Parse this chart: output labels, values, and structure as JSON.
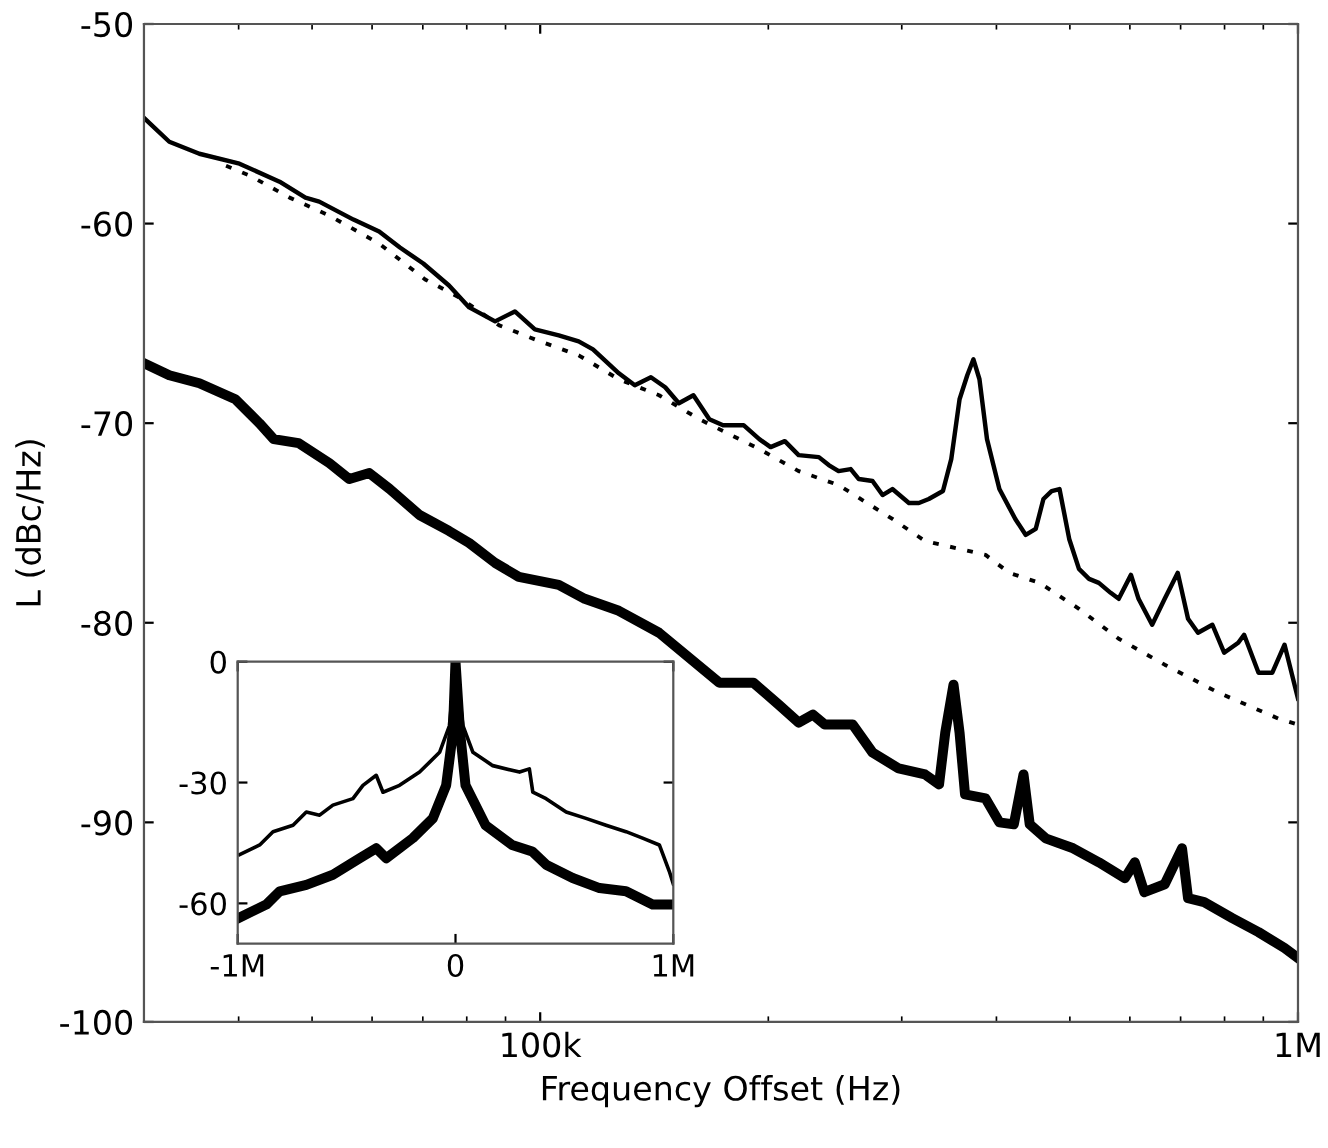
{
  "chart_data": [
    {
      "type": "line",
      "xlabel": "Frequency Offset (Hz)",
      "ylabel": "L (dBc/Hz)",
      "log": "x",
      "xlim": [
        30000,
        1000000
      ],
      "xticks": [
        {
          "value": 100000,
          "label": "100k"
        },
        {
          "value": 1000000,
          "label": "1M"
        }
      ],
      "ylim": [
        -100,
        -50
      ],
      "yticks": [
        -100,
        -90,
        -80,
        -70,
        -60,
        -50
      ],
      "grid": false,
      "legend": false,
      "marker": "none",
      "series": [
        {
          "color": "#000000",
          "line_style": "solid",
          "x": [
            30000,
            32400,
            35500,
            40100,
            45300,
            49000,
            51100,
            56700,
            61300,
            65300,
            70100,
            75800,
            80600,
            87200,
            92600,
            98400,
            105800,
            112400,
            117400,
            127000,
            133300,
            140000,
            146200,
            152400,
            159300,
            167200,
            174300,
            185500,
            194600,
            201400,
            210300,
            219300,
            233200,
            240300,
            247600,
            256900,
            263300,
            274500,
            283000,
            291600,
            306600,
            316000,
            325700,
            340000,
            348700,
            357600,
            366100,
            373000,
            379900,
            388700,
            403600,
            423600,
            437300,
            450700,
            461400,
            473000,
            484500,
            499000,
            514000,
            530000,
            546000,
            566000,
            580000,
            602000,
            616000,
            642000,
            667000,
            694000,
            716000,
            738000,
            771000,
            799000,
            834000,
            849000,
            887000,
            925000,
            960000,
            1000000
          ],
          "values": [
            -54.7,
            -55.9,
            -56.5,
            -57.0,
            -57.9,
            -58.7,
            -58.9,
            -59.8,
            -60.4,
            -61.2,
            -62.0,
            -63.1,
            -64.2,
            -64.9,
            -64.4,
            -65.3,
            -65.6,
            -65.9,
            -66.3,
            -67.5,
            -68.1,
            -67.7,
            -68.2,
            -69.0,
            -68.6,
            -69.8,
            -70.1,
            -70.1,
            -70.8,
            -71.2,
            -70.9,
            -71.6,
            -71.7,
            -72.1,
            -72.4,
            -72.3,
            -72.8,
            -72.9,
            -73.6,
            -73.3,
            -74.0,
            -74.0,
            -73.8,
            -73.4,
            -71.8,
            -68.8,
            -67.6,
            -66.8,
            -67.8,
            -70.8,
            -73.3,
            -74.8,
            -75.6,
            -75.3,
            -73.8,
            -73.4,
            -73.3,
            -75.8,
            -77.3,
            -77.8,
            -78.0,
            -78.5,
            -78.8,
            -77.6,
            -78.8,
            -80.1,
            -78.8,
            -77.5,
            -79.8,
            -80.5,
            -80.1,
            -81.5,
            -81.0,
            -80.6,
            -82.5,
            -82.5,
            -81.1,
            -83.8
          ]
        },
        {
          "color": "#000000",
          "line_style": "dotted",
          "x": [
            38500,
            41400,
            46700,
            52700,
            61300,
            70500,
            78200,
            88300,
            98400,
            112400,
            127000,
            143500,
            162200,
            194600,
            219300,
            247600,
            291600,
            322000,
            357600,
            387000,
            416000,
            456000,
            514000,
            580000,
            667000,
            785000,
            942000,
            1000000
          ],
          "values": [
            -57.1,
            -57.6,
            -58.7,
            -59.6,
            -61.0,
            -62.8,
            -63.7,
            -65.1,
            -65.8,
            -66.6,
            -67.8,
            -68.6,
            -69.8,
            -71.3,
            -72.4,
            -73.1,
            -74.8,
            -75.9,
            -76.3,
            -76.6,
            -77.5,
            -78.0,
            -79.3,
            -80.8,
            -82.1,
            -83.5,
            -84.8,
            -85.1
          ]
        },
        {
          "color": "#000000",
          "line_style": "solid",
          "x": [
            30000,
            32400,
            35500,
            39600,
            42600,
            44500,
            48000,
            52700,
            56000,
            59500,
            63300,
            69300,
            75800,
            80600,
            87200,
            93700,
            105800,
            114500,
            127000,
            143500,
            172300,
            191100,
            206400,
            219300,
            229000,
            237500,
            258500,
            274500,
            297200,
            322000,
            336000,
            342400,
            351100,
            357600,
            363600,
            387000,
            403600,
            421700,
            434300,
            442600,
            464500,
            505000,
            546000,
            591000,
            609000,
            627000,
            667000,
            703000,
            716000,
            752000,
            819000,
            887000,
            960000,
            1000000
          ],
          "values": [
            -67.0,
            -67.6,
            -68.0,
            -68.8,
            -70.0,
            -70.8,
            -71.0,
            -72.0,
            -72.8,
            -72.5,
            -73.3,
            -74.6,
            -75.4,
            -76.0,
            -77.0,
            -77.7,
            -78.1,
            -78.8,
            -79.4,
            -80.5,
            -83.0,
            -83.0,
            -84.1,
            -85.0,
            -84.6,
            -85.1,
            -85.1,
            -86.5,
            -87.3,
            -87.6,
            -88.1,
            -85.5,
            -83.1,
            -85.5,
            -88.6,
            -88.8,
            -90.0,
            -90.1,
            -87.6,
            -90.1,
            -90.8,
            -91.3,
            -92.0,
            -92.8,
            -92.0,
            -93.5,
            -93.1,
            -91.3,
            -93.8,
            -94.0,
            -94.8,
            -95.5,
            -96.3,
            -96.8
          ]
        }
      ]
    },
    {
      "type": "line",
      "xlim": [
        -1000000,
        1000000
      ],
      "xticks": [
        {
          "value": -1000000,
          "label": "-1M"
        },
        0,
        {
          "value": 1000000,
          "label": "1M"
        }
      ],
      "ylim": [
        -70,
        0
      ],
      "yticks": [
        -60,
        -30,
        0
      ],
      "grid": false,
      "legend": false,
      "marker": "none",
      "series": [
        {
          "color": "#000000",
          "line_style": "solid",
          "x": [
            -991000,
            -899000,
            -838000,
            -746000,
            -685000,
            -624000,
            -563000,
            -471000,
            -425000,
            -364000,
            -333000,
            -257000,
            -165000,
            -73000,
            -28000,
            0,
            34000,
            80000,
            171000,
            294000,
            339000,
            355000,
            416000,
            508000,
            599000,
            691000,
            783000,
            859000,
            936000,
            982000,
            1000000
          ],
          "values": [
            -47.9,
            -45.5,
            -42.2,
            -40.6,
            -37.3,
            -38.1,
            -35.6,
            -34.0,
            -30.7,
            -28.2,
            -32.4,
            -30.7,
            -27.4,
            -22.5,
            -15.9,
            0,
            -15.9,
            -22.5,
            -25.8,
            -27.4,
            -26.6,
            -32.4,
            -34.0,
            -37.3,
            -38.9,
            -40.6,
            -42.2,
            -43.8,
            -45.5,
            -52.1,
            -55.2
          ]
        },
        {
          "color": "#000000",
          "line_style": "solid",
          "x": [
            -991000,
            -869000,
            -807000,
            -685000,
            -563000,
            -440000,
            -364000,
            -318000,
            -196000,
            -104000,
            -43000,
            -12000,
            0,
            21000,
            46000,
            138000,
            260000,
            352000,
            416000,
            538000,
            661000,
            783000,
            905000,
            1000000
          ],
          "values": [
            -63.5,
            -60.3,
            -57.0,
            -55.4,
            -52.9,
            -48.8,
            -46.3,
            -48.8,
            -43.8,
            -38.9,
            -30.7,
            -17.6,
            0,
            -17.6,
            -30.7,
            -40.6,
            -45.5,
            -47.1,
            -50.4,
            -53.7,
            -56.2,
            -57.0,
            -60.3,
            -60.3
          ]
        }
      ]
    }
  ]
}
